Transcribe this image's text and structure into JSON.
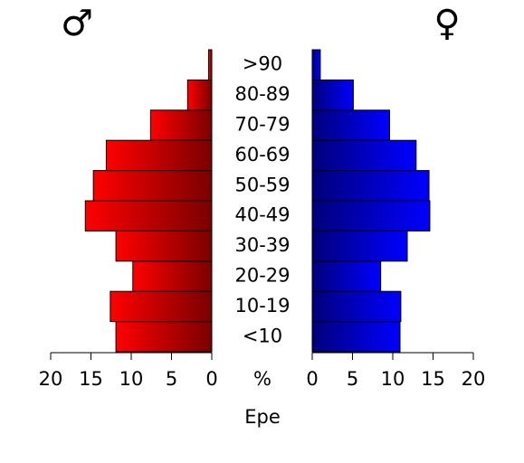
{
  "chart_data": {
    "type": "pyramid",
    "categories": [
      "<10",
      "10-19",
      "20-29",
      "30-39",
      "40-49",
      "50-59",
      "60-69",
      "70-79",
      "80-89",
      ">90"
    ],
    "series": [
      {
        "name": "♂",
        "side": "left",
        "colors": [
          "#ff0000",
          "#7a0000"
        ],
        "values": [
          11.9,
          12.6,
          9.8,
          11.9,
          15.7,
          14.7,
          13.1,
          7.6,
          3.0,
          0.4
        ]
      },
      {
        "name": "♀",
        "side": "right",
        "colors": [
          "#00007a",
          "#0000ff"
        ],
        "values": [
          10.9,
          11.0,
          8.5,
          11.8,
          14.6,
          14.5,
          12.9,
          9.6,
          5.1,
          1.0
        ]
      }
    ],
    "xlim": [
      0,
      20
    ],
    "xticks": [
      0,
      5,
      10,
      15,
      20
    ],
    "unit": "%",
    "xlabel": "Epe"
  }
}
